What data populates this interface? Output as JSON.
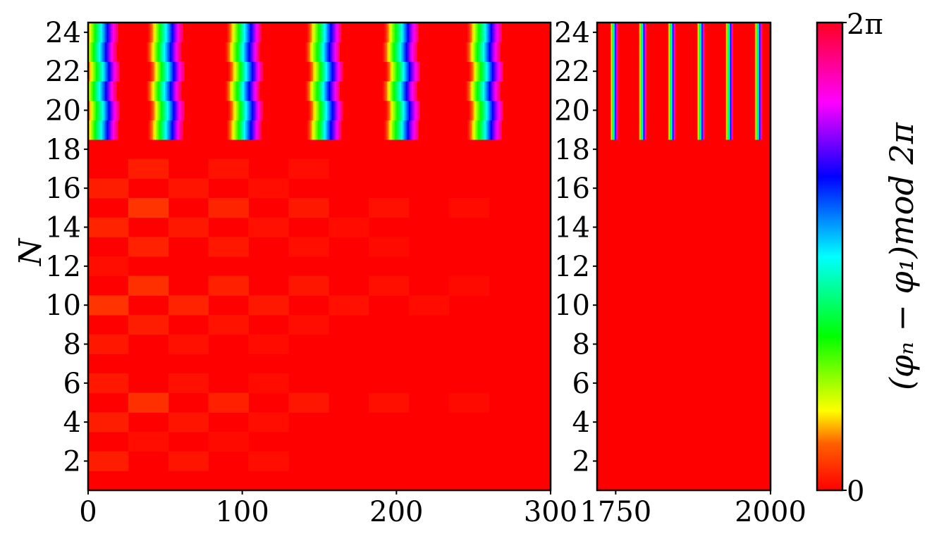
{
  "chart_data": [
    {
      "type": "heatmap",
      "panel": "left",
      "ylabel": "N",
      "xlim": [
        0,
        300
      ],
      "ylim": [
        0.5,
        24.5
      ],
      "xticks": [
        0,
        100,
        200,
        300
      ],
      "xtick_labels": [
        "0",
        "100",
        "200",
        "300"
      ],
      "yticks": [
        2,
        4,
        6,
        8,
        10,
        12,
        14,
        16,
        18,
        20,
        22,
        24
      ],
      "ytick_labels": [
        "2",
        "4",
        "6",
        "8",
        "10",
        "12",
        "14",
        "16",
        "18",
        "20",
        "22",
        "24"
      ],
      "background_value": 0,
      "stripe_rows": [
        19,
        24
      ],
      "stripe_centers": [
        8,
        50,
        101,
        153,
        203,
        257
      ],
      "stripe_width": 22,
      "stripe_wobble": [
        0,
        0.5,
        -0.5,
        0.5,
        -0.5,
        0
      ],
      "patch_cell_width": 26,
      "patch_amplitude_rows": [
        {
          "n": 15,
          "value": 0.55
        },
        {
          "n": 11,
          "value": 0.5
        },
        {
          "n": 10,
          "value": 0.45
        },
        {
          "n": 5,
          "value": 0.5
        },
        {
          "n": 13,
          "value": 0.35
        },
        {
          "n": 14,
          "value": 0.3
        },
        {
          "n": 17,
          "value": 0.3
        },
        {
          "n": 16,
          "value": 0.25
        },
        {
          "n": 9,
          "value": 0.3
        },
        {
          "n": 2,
          "value": 0.25
        },
        {
          "n": 6,
          "value": 0.2
        },
        {
          "n": 4,
          "value": 0.25
        },
        {
          "n": 8,
          "value": 0.2
        },
        {
          "n": 3,
          "value": 0.15
        },
        {
          "n": 12,
          "value": 0.12
        },
        {
          "n": 7,
          "value": 0.1
        },
        {
          "n": 1,
          "value": 0.05
        },
        {
          "n": 18,
          "value": 0.05
        }
      ]
    },
    {
      "type": "heatmap",
      "panel": "right",
      "xlim": [
        1720,
        2000
      ],
      "ylim": [
        0.5,
        24.5
      ],
      "xticks": [
        1750,
        2000
      ],
      "xtick_labels": [
        "1750",
        "2000"
      ],
      "yticks": [
        2,
        4,
        6,
        8,
        10,
        12,
        14,
        16,
        18,
        20,
        22,
        24
      ],
      "ytick_labels": [
        "2",
        "4",
        "6",
        "8",
        "10",
        "12",
        "14",
        "16",
        "18",
        "20",
        "22",
        "24"
      ],
      "background_value": 0,
      "stripe_rows": [
        19,
        24
      ],
      "stripe_centers": [
        1747,
        1793,
        1840,
        1887,
        1933,
        1980
      ],
      "stripe_width": 12,
      "stripe_wobble": [
        0,
        0,
        0,
        0,
        0,
        0
      ],
      "patch_cell_width": 26,
      "patch_amplitude_rows": [
        {
          "n": 15,
          "value": 0.06
        },
        {
          "n": 11,
          "value": 0.06
        },
        {
          "n": 5,
          "value": 0.05
        },
        {
          "n": 13,
          "value": 0.04
        },
        {
          "n": 9,
          "value": 0.04
        },
        {
          "n": 3,
          "value": 0.04
        },
        {
          "n": 7,
          "value": 0.03
        }
      ]
    }
  ],
  "colorbar": {
    "label": "(φₙ − φ₁)mod 2π",
    "vmin_label": "0",
    "vmax_label": "2π",
    "colormap": "hsv"
  }
}
